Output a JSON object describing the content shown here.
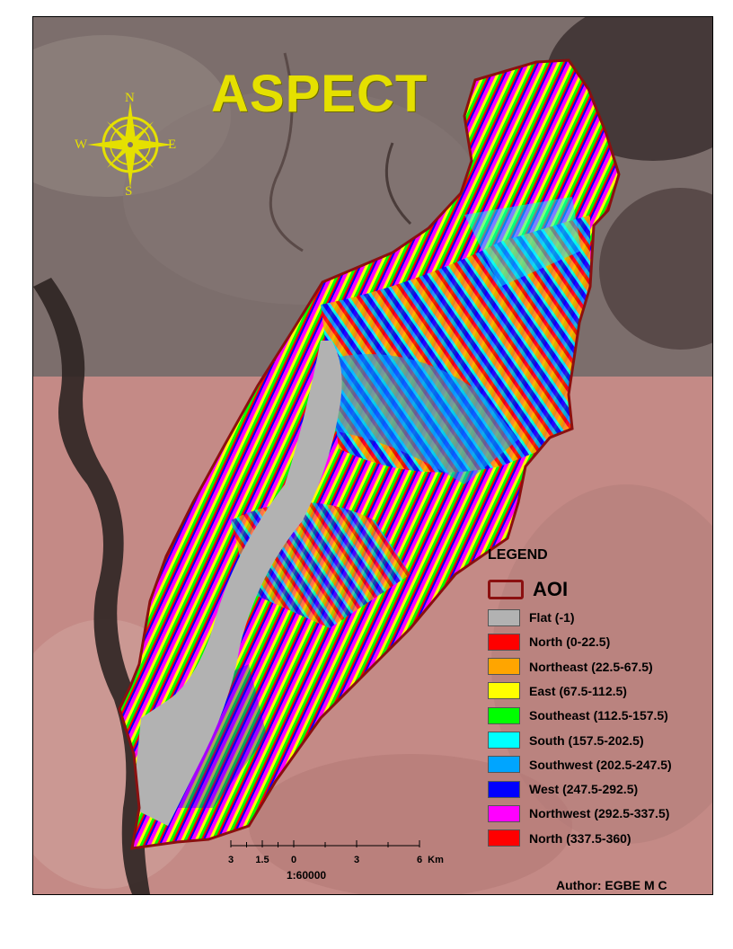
{
  "map": {
    "title": "ASPECT",
    "author": "Author: EGBE M C"
  },
  "compass": {
    "north": "N",
    "south": "S",
    "east": "E",
    "west": "W",
    "color": "#e5e000"
  },
  "legend": {
    "title": "LEGEND",
    "aoi_label": "AOI",
    "aoi_color": "#8b1010",
    "items": [
      {
        "label": "Flat (-1)",
        "color": "#b2b2b2"
      },
      {
        "label": "North (0-22.5)",
        "color": "#ff0000"
      },
      {
        "label": "Northeast (22.5-67.5)",
        "color": "#ffa500"
      },
      {
        "label": "East (67.5-112.5)",
        "color": "#ffff00"
      },
      {
        "label": "Southeast (112.5-157.5)",
        "color": "#00ff00"
      },
      {
        "label": "South (157.5-202.5)",
        "color": "#00ffff"
      },
      {
        "label": "Southwest (202.5-247.5)",
        "color": "#00a5ff"
      },
      {
        "label": "West (247.5-292.5)",
        "color": "#0000ff"
      },
      {
        "label": "Northwest (292.5-337.5)",
        "color": "#ff00ff"
      },
      {
        "label": "North (337.5-360)",
        "color": "#ff0000"
      }
    ]
  },
  "scale_bar": {
    "ticks": [
      "3",
      "1.5",
      "0",
      "3",
      "6"
    ],
    "unit": "Km",
    "ratio": "1:60000"
  }
}
